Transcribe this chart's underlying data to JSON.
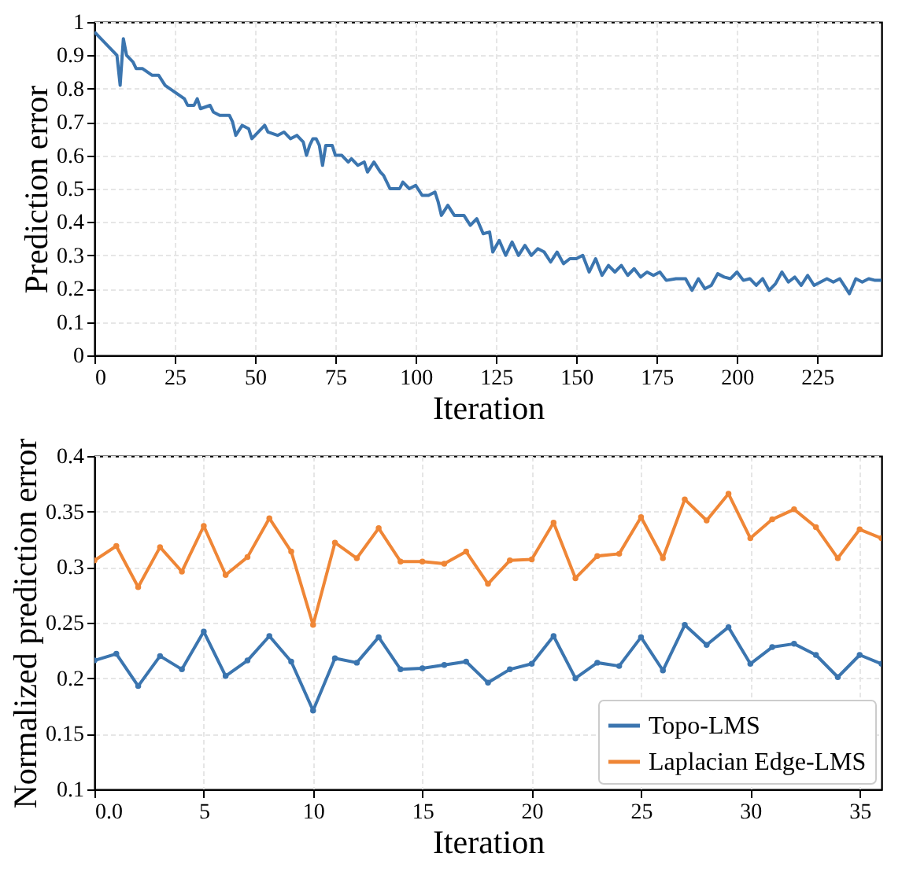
{
  "chart_data": [
    {
      "type": "line",
      "xlabel": "Iteration",
      "ylabel": "Prediction error",
      "xlim": [
        0,
        245
      ],
      "ylim": [
        0,
        1
      ],
      "xticks": [
        0,
        25,
        50,
        75,
        100,
        125,
        150,
        175,
        200,
        225
      ],
      "yticks": [
        0,
        0.1,
        0.2,
        0.3,
        0.4,
        0.5,
        0.6,
        0.7,
        0.8,
        0.9,
        1
      ],
      "grid": true,
      "marker": "none",
      "line_style": "solid",
      "series": [
        {
          "color": "#3b75af",
          "x": [
            0,
            3,
            5,
            7,
            8,
            9,
            10,
            12,
            13,
            15,
            18,
            20,
            22,
            25,
            28,
            29,
            31,
            32,
            33,
            36,
            37,
            39,
            42,
            43,
            44,
            46,
            48,
            49,
            51,
            53,
            54,
            57,
            59,
            61,
            63,
            65,
            66,
            67,
            68,
            69,
            70,
            71,
            72,
            74,
            75,
            77,
            79,
            80,
            82,
            84,
            85,
            87,
            89,
            90,
            92,
            95,
            96,
            98,
            100,
            102,
            104,
            106,
            107,
            108,
            110,
            112,
            113,
            115,
            117,
            119,
            121,
            123,
            124,
            126,
            128,
            130,
            132,
            134,
            136,
            138,
            140,
            142,
            144,
            146,
            148,
            150,
            152,
            154,
            156,
            158,
            160,
            162,
            164,
            166,
            168,
            170,
            172,
            174,
            176,
            178,
            181,
            184,
            186,
            188,
            190,
            192,
            194,
            196,
            198,
            200,
            202,
            204,
            206,
            208,
            210,
            212,
            214,
            216,
            218,
            220,
            222,
            224,
            226,
            228,
            230,
            232,
            234,
            235,
            237,
            239,
            241,
            243,
            245
          ],
          "values": [
            0.97,
            0.94,
            0.92,
            0.9,
            0.81,
            0.95,
            0.9,
            0.88,
            0.86,
            0.86,
            0.84,
            0.84,
            0.81,
            0.79,
            0.77,
            0.75,
            0.75,
            0.77,
            0.74,
            0.75,
            0.73,
            0.72,
            0.72,
            0.7,
            0.66,
            0.69,
            0.68,
            0.65,
            0.67,
            0.69,
            0.67,
            0.66,
            0.67,
            0.65,
            0.66,
            0.64,
            0.6,
            0.63,
            0.65,
            0.65,
            0.63,
            0.57,
            0.63,
            0.63,
            0.6,
            0.6,
            0.58,
            0.59,
            0.57,
            0.58,
            0.55,
            0.58,
            0.55,
            0.54,
            0.5,
            0.5,
            0.52,
            0.5,
            0.51,
            0.48,
            0.48,
            0.49,
            0.46,
            0.42,
            0.45,
            0.42,
            0.42,
            0.42,
            0.39,
            0.41,
            0.365,
            0.37,
            0.31,
            0.345,
            0.3,
            0.34,
            0.3,
            0.33,
            0.3,
            0.32,
            0.31,
            0.28,
            0.31,
            0.275,
            0.29,
            0.29,
            0.3,
            0.25,
            0.29,
            0.24,
            0.27,
            0.25,
            0.27,
            0.24,
            0.26,
            0.235,
            0.25,
            0.24,
            0.25,
            0.225,
            0.23,
            0.23,
            0.195,
            0.23,
            0.2,
            0.21,
            0.245,
            0.235,
            0.23,
            0.25,
            0.225,
            0.23,
            0.21,
            0.23,
            0.195,
            0.215,
            0.25,
            0.22,
            0.235,
            0.21,
            0.24,
            0.21,
            0.22,
            0.23,
            0.22,
            0.23,
            0.2,
            0.185,
            0.23,
            0.22,
            0.23,
            0.225,
            0.225
          ]
        }
      ]
    },
    {
      "type": "line",
      "xlabel": "Iteration",
      "ylabel": "Normalized prediction error",
      "xlim": [
        0,
        36
      ],
      "ylim": [
        0.1,
        0.4
      ],
      "xticks": [
        {
          "value": 0,
          "label": "0.0"
        },
        5,
        10,
        15,
        20,
        25,
        30,
        35
      ],
      "yticks": [
        0.1,
        0.15,
        0.2,
        0.25,
        0.3,
        0.35,
        0.4
      ],
      "grid": true,
      "marker": "circle",
      "line_style": "solid",
      "legend": "bottom right",
      "x": [
        0,
        1,
        2,
        3,
        4,
        5,
        6,
        7,
        8,
        9,
        10,
        11,
        12,
        13,
        14,
        15,
        16,
        17,
        18,
        19,
        20,
        21,
        22,
        23,
        24,
        25,
        26,
        27,
        28,
        29,
        30,
        31,
        32,
        33,
        34,
        35,
        36
      ],
      "series": [
        {
          "name": "Topo-LMS",
          "color": "#3b75af",
          "values": [
            0.216,
            0.222,
            0.193,
            0.22,
            0.208,
            0.242,
            0.202,
            0.216,
            0.238,
            0.215,
            0.171,
            0.218,
            0.214,
            0.237,
            0.208,
            0.209,
            0.212,
            0.215,
            0.196,
            0.208,
            0.213,
            0.238,
            0.2,
            0.214,
            0.211,
            0.237,
            0.207,
            0.248,
            0.23,
            0.246,
            0.213,
            0.228,
            0.231,
            0.221,
            0.201,
            0.221,
            0.213
          ]
        },
        {
          "name": "Laplacian Edge-LMS",
          "color": "#ef8636",
          "values": [
            0.306,
            0.319,
            0.282,
            0.318,
            0.296,
            0.337,
            0.293,
            0.309,
            0.344,
            0.314,
            0.248,
            0.322,
            0.308,
            0.335,
            0.305,
            0.305,
            0.303,
            0.314,
            0.285,
            0.306,
            0.307,
            0.34,
            0.29,
            0.31,
            0.312,
            0.345,
            0.308,
            0.361,
            0.342,
            0.366,
            0.326,
            0.343,
            0.352,
            0.336,
            0.308,
            0.334,
            0.326
          ]
        }
      ]
    }
  ]
}
